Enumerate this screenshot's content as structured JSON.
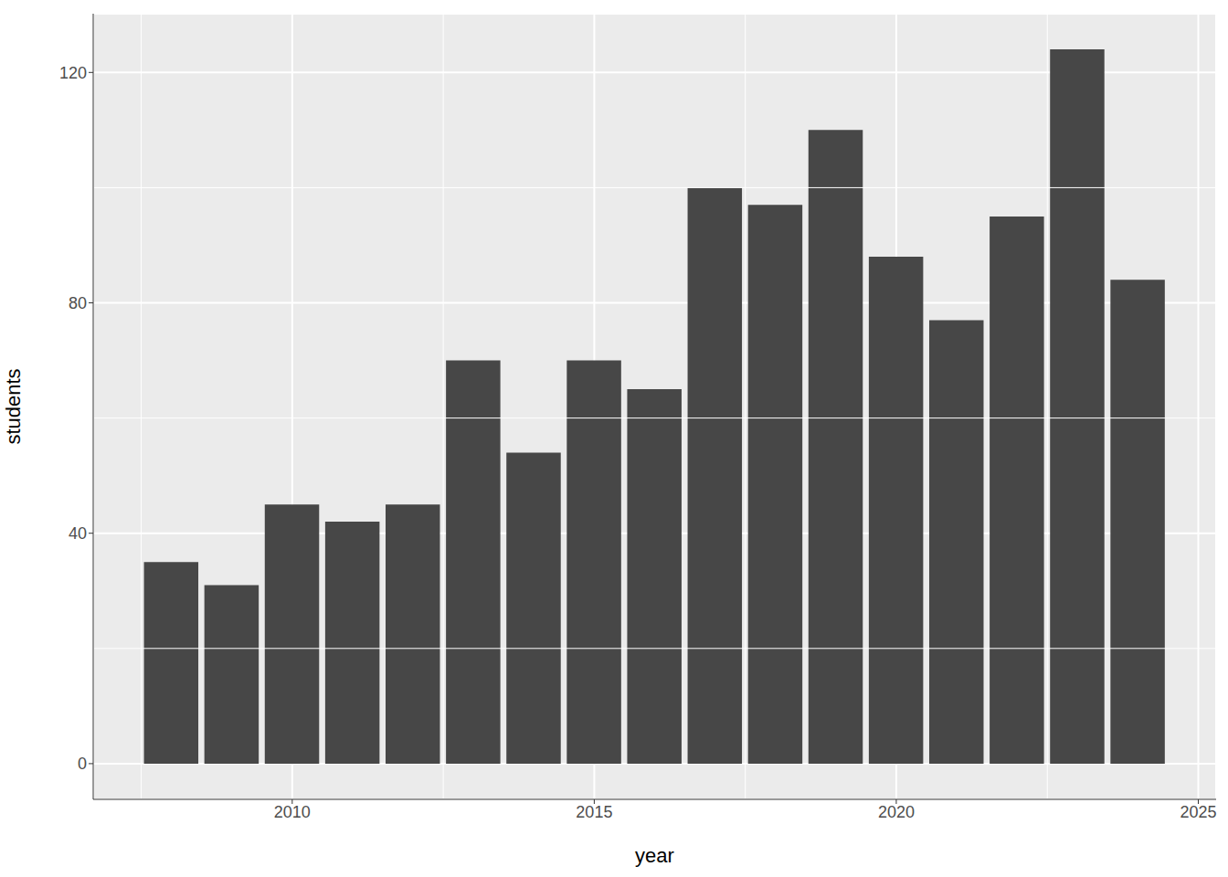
{
  "chart_data": {
    "type": "bar",
    "x_label": "year",
    "y_label": "students",
    "x": [
      2008,
      2009,
      2010,
      2011,
      2012,
      2013,
      2014,
      2015,
      2016,
      2017,
      2018,
      2019,
      2020,
      2021,
      2022,
      2023,
      2024
    ],
    "values": [
      35,
      31,
      45,
      42,
      45,
      70,
      54,
      70,
      65,
      100,
      97,
      110,
      88,
      77,
      95,
      124,
      84
    ],
    "color": "#474747",
    "xlim": [
      2006.705,
      2025.295
    ],
    "xticks": [
      2010,
      2015,
      2020,
      2025
    ],
    "ylim": [
      -6.2,
      130.2
    ],
    "yticks": [
      0,
      40,
      80,
      120
    ],
    "grid": true
  }
}
